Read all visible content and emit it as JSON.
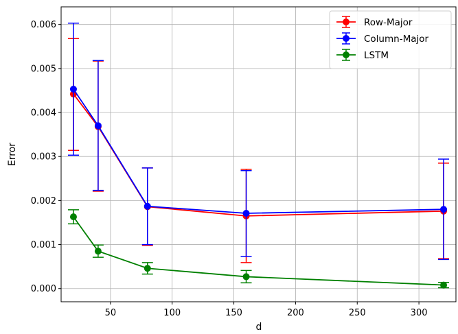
{
  "chart_data": {
    "type": "line",
    "title": "",
    "xlabel": "d",
    "ylabel": "Error",
    "x": [
      20,
      40,
      80,
      160,
      320
    ],
    "xlim": [
      10,
      330
    ],
    "ylim": [
      -0.0003,
      0.0064
    ],
    "xticks": [
      50,
      100,
      150,
      200,
      250,
      300
    ],
    "xtick_labels": [
      "50",
      "100",
      "150",
      "200",
      "250",
      "300"
    ],
    "yticks": [
      0.0,
      0.001,
      0.002,
      0.003,
      0.004,
      0.005,
      0.006
    ],
    "ytick_labels": [
      "0.000",
      "0.001",
      "0.002",
      "0.003",
      "0.004",
      "0.005",
      "0.006"
    ],
    "grid": true,
    "legend_position": "top-right",
    "series": [
      {
        "name": "Row-Major",
        "color": "#ff0000",
        "values": [
          0.00442,
          0.00368,
          0.00186,
          0.00165,
          0.00176
        ],
        "err_low": [
          0.00314,
          0.00221,
          0.00098,
          0.00059,
          0.00068
        ],
        "err_high": [
          0.00568,
          0.00517,
          0.00274,
          0.00271,
          0.00285
        ]
      },
      {
        "name": "Column-Major",
        "color": "#0000ff",
        "values": [
          0.00453,
          0.0037,
          0.00187,
          0.00171,
          0.0018
        ],
        "err_low": [
          0.00303,
          0.00223,
          0.001,
          0.00073,
          0.00066
        ],
        "err_high": [
          0.00603,
          0.00518,
          0.00274,
          0.00268,
          0.00294
        ]
      },
      {
        "name": "LSTM",
        "color": "#008000",
        "values": [
          0.00163,
          0.00085,
          0.00046,
          0.00027,
          8e-05
        ],
        "err_low": [
          0.00147,
          0.00071,
          0.00033,
          0.00013,
          2e-05
        ],
        "err_high": [
          0.00179,
          0.00099,
          0.00059,
          0.00041,
          0.00014
        ]
      }
    ]
  }
}
